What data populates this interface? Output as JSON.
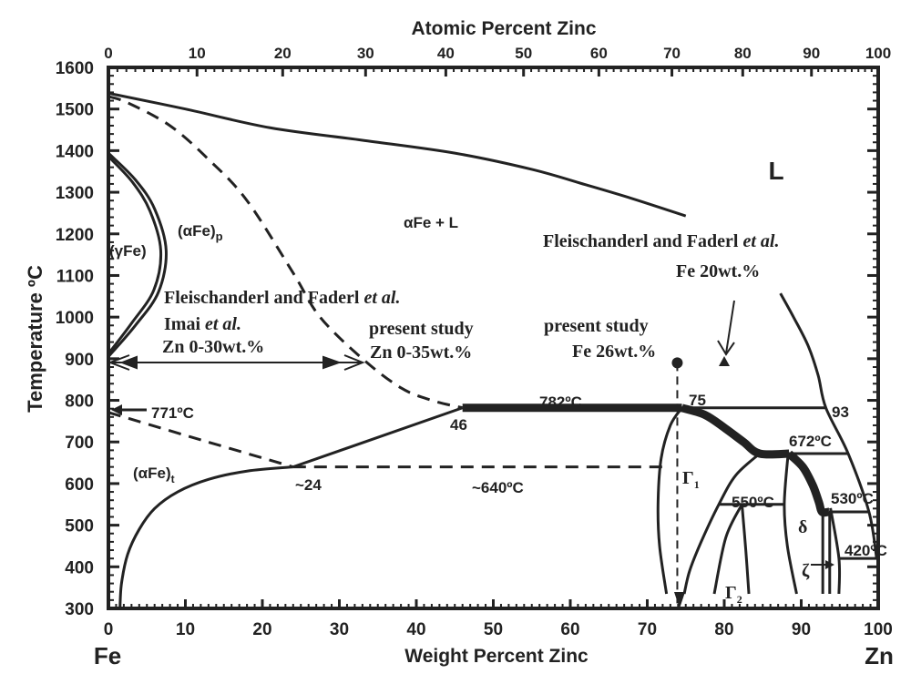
{
  "chart_data": {
    "type": "line",
    "title": "",
    "xlabel": "Weight Percent Zinc",
    "x2label": "Atomic Percent Zinc",
    "ylabel": "Temperature ºC",
    "xlim": [
      0,
      100
    ],
    "ylim": [
      300,
      1600
    ],
    "x_end_labels": {
      "left": "Fe",
      "right": "Zn"
    },
    "x_ticks": [
      0,
      10,
      20,
      30,
      40,
      50,
      60,
      70,
      80,
      90,
      100
    ],
    "x2_ticks": [
      0,
      10,
      20,
      30,
      40,
      50,
      60,
      70,
      80,
      90,
      100
    ],
    "y_ticks": [
      300,
      400,
      500,
      600,
      700,
      800,
      900,
      1000,
      1100,
      1200,
      1300,
      1400,
      1500,
      1600
    ],
    "grid": false,
    "color": "#222222",
    "lines": [
      {
        "id": "liquidus",
        "style": "solid",
        "points": [
          [
            0,
            1538
          ],
          [
            10,
            1500
          ],
          [
            21,
            1455
          ],
          [
            33,
            1425
          ],
          [
            45,
            1394
          ],
          [
            55,
            1355
          ],
          [
            62,
            1318
          ],
          [
            68,
            1285
          ],
          [
            75,
            1243
          ]
        ]
      },
      {
        "id": "alpha-fe-p-boundary",
        "style": "dashed",
        "points": [
          [
            0,
            1530
          ],
          [
            2.5,
            1515
          ],
          [
            8,
            1460
          ],
          [
            13,
            1379
          ],
          [
            18,
            1280
          ],
          [
            24,
            1106
          ],
          [
            27.5,
            1000
          ],
          [
            33,
            900
          ],
          [
            38,
            830
          ],
          [
            42,
            800
          ],
          [
            46,
            782
          ]
        ]
      },
      {
        "id": "gamma-loop-outer",
        "style": "solid",
        "points": [
          [
            0,
            1394
          ],
          [
            3.5,
            1330
          ],
          [
            6,
            1260
          ],
          [
            7.5,
            1160
          ],
          [
            6.5,
            1060
          ],
          [
            3.5,
            980
          ],
          [
            0,
            905
          ]
        ]
      },
      {
        "id": "gamma-loop-inner",
        "style": "solid",
        "points": [
          [
            0,
            1386
          ],
          [
            3.1,
            1325
          ],
          [
            5.4,
            1255
          ],
          [
            6.8,
            1160
          ],
          [
            5.9,
            1065
          ],
          [
            3.0,
            985
          ],
          [
            0,
            912
          ]
        ]
      },
      {
        "id": "magnetic-dashed",
        "style": "dashed",
        "points": [
          [
            0,
            771
          ],
          [
            12,
            705
          ],
          [
            24,
            640
          ]
        ]
      },
      {
        "id": "dashed-640",
        "style": "dashed",
        "points": [
          [
            24,
            640
          ],
          [
            72,
            640
          ]
        ]
      },
      {
        "id": "alpha-fe-t-solvus",
        "style": "solid",
        "points": [
          [
            1.5,
            300
          ],
          [
            1.7,
            360
          ],
          [
            2.5,
            430
          ],
          [
            4,
            490
          ],
          [
            6,
            540
          ],
          [
            9,
            580
          ],
          [
            13,
            610
          ],
          [
            18,
            630
          ],
          [
            24,
            640
          ]
        ]
      },
      {
        "id": "line-24-46",
        "style": "solid",
        "points": [
          [
            24,
            640
          ],
          [
            46,
            782
          ]
        ]
      },
      {
        "id": "peritectic-782",
        "style": "thick",
        "points": [
          [
            46,
            782
          ],
          [
            74.5,
            782
          ]
        ]
      },
      {
        "id": "line-782-75-93",
        "style": "solid",
        "points": [
          [
            74.5,
            782
          ],
          [
            93.2,
            782
          ]
        ]
      },
      {
        "id": "gamma1-liquid-thick",
        "style": "thick",
        "points": [
          [
            74.5,
            782
          ],
          [
            77.5,
            765
          ],
          [
            80.1,
            733
          ],
          [
            82.5,
            700
          ],
          [
            84.6,
            672
          ],
          [
            88.4,
            672
          ]
        ]
      },
      {
        "id": "delta-liquid-thick",
        "style": "thick",
        "points": [
          [
            88.4,
            672
          ],
          [
            90.2,
            640
          ],
          [
            91.5,
            596
          ],
          [
            92.3,
            555
          ],
          [
            92.7,
            532
          ],
          [
            93.6,
            532
          ]
        ]
      },
      {
        "id": "line-672",
        "style": "solid",
        "points": [
          [
            88.4,
            672
          ],
          [
            96.1,
            672
          ]
        ]
      },
      {
        "id": "line-530",
        "style": "solid",
        "points": [
          [
            93.6,
            532
          ],
          [
            98.8,
            532
          ]
        ]
      },
      {
        "id": "line-420",
        "style": "solid",
        "points": [
          [
            94.9,
            420
          ],
          [
            99.8,
            420
          ]
        ]
      },
      {
        "id": "liquidus-zn-side",
        "style": "solid",
        "points": [
          [
            87.3,
            1057
          ],
          [
            89,
            1000
          ],
          [
            90.9,
            931
          ],
          [
            92.2,
            860
          ],
          [
            93.2,
            782
          ],
          [
            96.1,
            672
          ],
          [
            98.8,
            532
          ],
          [
            99.8,
            420
          ]
        ]
      },
      {
        "id": "gamma1-left",
        "style": "solid",
        "points": [
          [
            74.5,
            782
          ],
          [
            73,
            740
          ],
          [
            71.8,
            660
          ],
          [
            71.4,
            550
          ],
          [
            71.6,
            450
          ],
          [
            72.5,
            335
          ]
        ]
      },
      {
        "id": "gamma1-right",
        "style": "solid",
        "points": [
          [
            84.6,
            672
          ],
          [
            81.5,
            620
          ],
          [
            79.3,
            550
          ],
          [
            77,
            460
          ],
          [
            75.5,
            390
          ],
          [
            74.8,
            335
          ]
        ]
      },
      {
        "id": "line-550",
        "style": "solid",
        "points": [
          [
            79.3,
            550
          ],
          [
            87.8,
            550
          ]
        ]
      },
      {
        "id": "gamma2-left",
        "style": "solid",
        "points": [
          [
            82.3,
            550
          ],
          [
            80.2,
            470
          ],
          [
            78.7,
            335
          ]
        ]
      },
      {
        "id": "gamma2-right",
        "style": "solid",
        "points": [
          [
            82.3,
            550
          ],
          [
            82.8,
            440
          ],
          [
            83.2,
            335
          ]
        ]
      },
      {
        "id": "delta-left",
        "style": "solid",
        "points": [
          [
            88.3,
            672
          ],
          [
            87.8,
            550
          ],
          [
            88.2,
            450
          ],
          [
            89.4,
            335
          ]
        ]
      },
      {
        "id": "delta-right-vertical",
        "style": "solid",
        "points": [
          [
            92.8,
            532
          ],
          [
            92.8,
            335
          ]
        ]
      },
      {
        "id": "zeta-left-vertical",
        "style": "solid",
        "points": [
          [
            93.7,
            532
          ],
          [
            93.7,
            335
          ]
        ]
      },
      {
        "id": "zeta-right",
        "style": "solid",
        "points": [
          [
            93.8,
            541
          ],
          [
            94.9,
            420
          ],
          [
            94.9,
            335
          ]
        ]
      },
      {
        "id": "dashed-vertical-fe26",
        "style": "dashed-thin",
        "points": [
          [
            73.9,
            890
          ],
          [
            73.9,
            305
          ]
        ]
      }
    ],
    "markers": [
      {
        "id": "present-study-point",
        "shape": "circle",
        "x": 73.9,
        "y": 890
      },
      {
        "id": "fleischanderl-point",
        "shape": "triangle",
        "x": 80,
        "y": 893
      }
    ],
    "annotations": {
      "L": "L",
      "alpha_fe_l": "αFe + L",
      "alpha_fe_p": {
        "main": "(αFe)",
        "sub": "p"
      },
      "gamma_fe": "(γFe)",
      "fleisch_left": {
        "main": "Fleischanderl and Faderl ",
        "it": "et al."
      },
      "imai": {
        "main": "Imai ",
        "it": "et al."
      },
      "zn_0_30": "Zn 0-30wt.%",
      "present_left_1": "present study",
      "present_left_2": "Zn 0-35wt.%",
      "fleisch_right": {
        "main": "Fleischanderl  and Faderl ",
        "it": "et al."
      },
      "fe_20": "Fe 20wt.%",
      "present_right_1": "present study",
      "present_right_2": "Fe 26wt.%",
      "t771": "771ºC",
      "alpha_fe_t": {
        "main": "(αFe)",
        "sub": "t"
      },
      "c24": "~24",
      "c46": "46",
      "t782": "782ºC",
      "c75": "75",
      "c93": "93",
      "t672": "672ºC",
      "t640": "~640ºC",
      "gamma1": {
        "main": "Γ",
        "sub": "1"
      },
      "t550": "550ºC",
      "t530": "530ºC",
      "delta": "δ",
      "t420": "420ºC",
      "zeta": "ζ",
      "gamma2": {
        "main": "Γ",
        "sub": "2"
      }
    }
  }
}
